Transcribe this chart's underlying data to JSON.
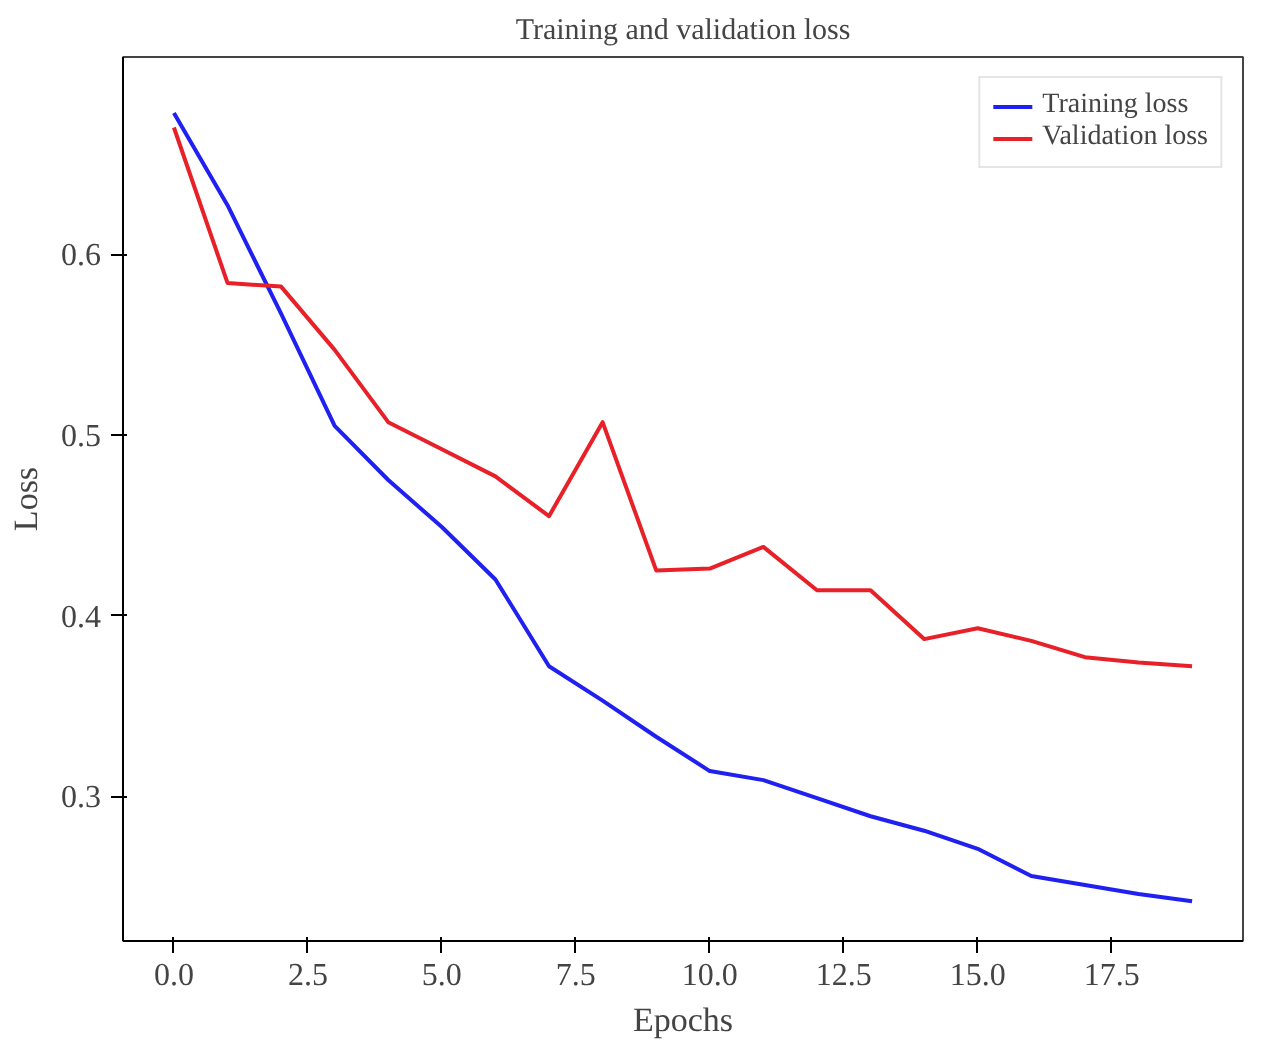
{
  "chart_data": {
    "type": "line",
    "title": "Training and validation loss",
    "xlabel": "Epochs",
    "ylabel": "Loss",
    "x": [
      0,
      1,
      2,
      3,
      4,
      5,
      6,
      7,
      8,
      9,
      10,
      11,
      12,
      13,
      14,
      15,
      16,
      17,
      18,
      19
    ],
    "series": [
      {
        "name": "Training loss",
        "color": "#2020f0",
        "values": [
          0.678,
          0.627,
          0.567,
          0.505,
          0.475,
          0.449,
          0.42,
          0.372,
          0.353,
          0.333,
          0.314,
          0.309,
          0.299,
          0.289,
          0.281,
          0.271,
          0.256,
          0.251,
          0.246,
          0.242
        ]
      },
      {
        "name": "Validation loss",
        "color": "#e82028",
        "values": [
          0.67,
          0.584,
          0.582,
          0.547,
          0.507,
          0.492,
          0.477,
          0.455,
          0.507,
          0.425,
          0.426,
          0.438,
          0.414,
          0.414,
          0.387,
          0.393,
          0.386,
          0.377,
          0.374,
          0.372
        ]
      }
    ],
    "xlim": [
      -0.95,
      19.95
    ],
    "ylim": [
      0.22,
      0.709
    ],
    "xticks": [
      {
        "value": 0,
        "label": "0.0"
      },
      {
        "value": 2.5,
        "label": "2.5"
      },
      {
        "value": 5,
        "label": "5.0"
      },
      {
        "value": 7.5,
        "label": "7.5"
      },
      {
        "value": 10,
        "label": "10.0"
      },
      {
        "value": 12.5,
        "label": "12.5"
      },
      {
        "value": 15,
        "label": "15.0"
      },
      {
        "value": 17.5,
        "label": "17.5"
      }
    ],
    "yticks": [
      0.3,
      0.4,
      0.5,
      0.6
    ],
    "grid": false,
    "legend": "top right",
    "marker": "none",
    "line_style": "solid"
  }
}
